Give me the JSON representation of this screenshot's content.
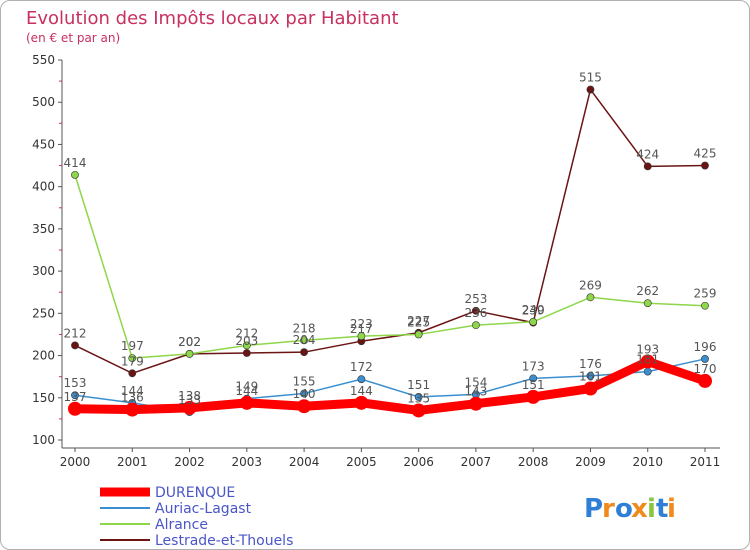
{
  "chart_data": {
    "type": "line",
    "title": "Evolution des Impôts locaux par Habitant",
    "subtitle": "(en € et par an)",
    "xlabel": "",
    "ylabel": "",
    "categories": [
      "2000",
      "2001",
      "2002",
      "2003",
      "2004",
      "2005",
      "2006",
      "2007",
      "2008",
      "2009",
      "2010",
      "2011"
    ],
    "ylim": [
      100,
      550
    ],
    "yticks": [
      100,
      150,
      200,
      250,
      300,
      350,
      400,
      450,
      500,
      550
    ],
    "grid": false,
    "legend_position": "bottom-left",
    "series": [
      {
        "name": "DURENQUE",
        "color": "#ff0000",
        "values": [
          137,
          136,
          138,
          144,
          140,
          144,
          135,
          143,
          151,
          161,
          193,
          170
        ],
        "labels": [
          "137",
          "136",
          "138",
          "144",
          "140",
          "144",
          "135",
          "143",
          "151",
          "161",
          "193",
          "170"
        ]
      },
      {
        "name": "Auriac-Lagast",
        "color": "#3b8fd0",
        "values": [
          153,
          144,
          133,
          149,
          155,
          172,
          151,
          154,
          173,
          176,
          181,
          196
        ],
        "labels": [
          "153",
          "144",
          "133",
          "149",
          "155",
          "172",
          "151",
          "154",
          "173",
          "176",
          "181",
          "196"
        ]
      },
      {
        "name": "Alrance",
        "color": "#8ed64a",
        "values": [
          414,
          197,
          202,
          212,
          218,
          223,
          225,
          236,
          240,
          269,
          262,
          259
        ],
        "labels": [
          "414",
          "197",
          "202",
          "212",
          "218",
          "223",
          "225",
          "236",
          "240",
          "269",
          "262",
          "259"
        ]
      },
      {
        "name": "Lestrade-et-Thouels",
        "color": "#6a1414",
        "values": [
          212,
          179,
          202,
          203,
          204,
          217,
          227,
          253,
          239,
          515,
          424,
          425
        ],
        "labels": [
          "212",
          "179",
          "202",
          "203",
          "204",
          "217",
          "227",
          "253",
          "239",
          "515",
          "424",
          "425"
        ]
      }
    ]
  },
  "logo": {
    "text": "Proxiti"
  }
}
